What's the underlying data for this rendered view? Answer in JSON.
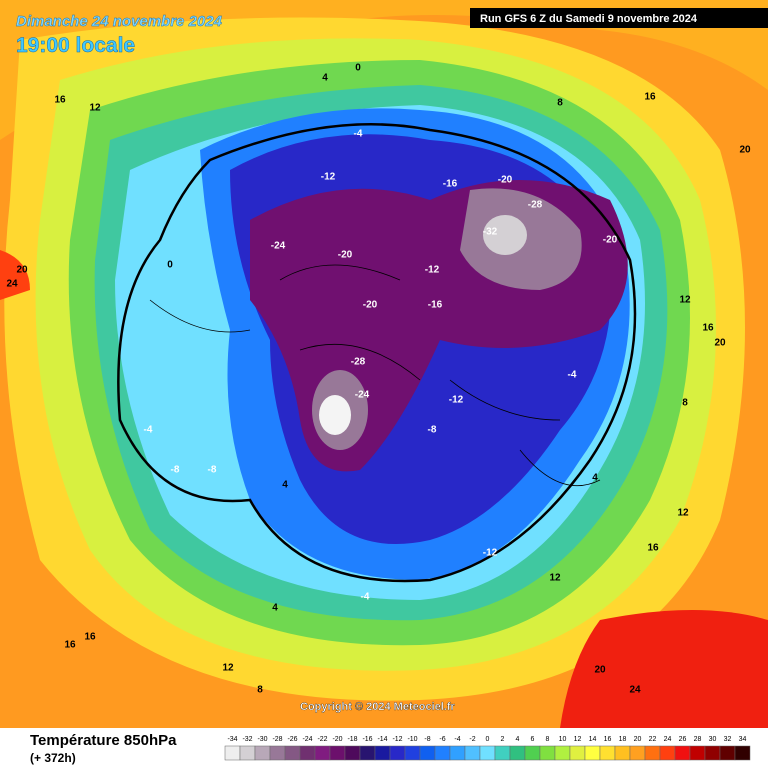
{
  "header": {
    "date": "Dimanche 24 novembre 2024",
    "time": "19:00 locale",
    "run": "Run GFS 6 Z du Samedi 9 novembre 2024"
  },
  "copyright": "Copyright © 2024 Meteociel.fr",
  "footer": {
    "title": "Température 850hPa",
    "lead": "(+ 372h)"
  },
  "scale": {
    "ticks": [
      -34,
      -32,
      -30,
      -28,
      -26,
      -24,
      -22,
      -20,
      -18,
      -16,
      -14,
      -12,
      -10,
      -8,
      -6,
      -4,
      -2,
      0,
      2,
      4,
      6,
      8,
      10,
      12,
      14,
      16,
      18,
      20,
      22,
      24,
      26,
      28,
      30,
      32,
      34
    ],
    "colors": [
      "#eeeeee",
      "#d4d0d4",
      "#b8a8b8",
      "#987898",
      "#845884",
      "#703070",
      "#801c80",
      "#6c106c",
      "#4e0a5c",
      "#281470",
      "#1a1aa0",
      "#2828c8",
      "#2040e0",
      "#1060f0",
      "#2080ff",
      "#30a0ff",
      "#50c0ff",
      "#70e0ff",
      "#40d0c0",
      "#30c080",
      "#50d050",
      "#80e040",
      "#b0f040",
      "#e0f040",
      "#ffff40",
      "#ffe030",
      "#ffc020",
      "#ffa020",
      "#ff7010",
      "#ff4010",
      "#f01010",
      "#c00000",
      "#900000",
      "#600000",
      "#300000"
    ]
  },
  "map_labels": [
    "16",
    "12",
    "4",
    "0",
    "-4",
    "-12",
    "-20",
    "-16",
    "-28",
    "-32",
    "-20",
    "-24",
    "-20",
    "-12",
    "-8",
    "-4",
    "0",
    "4",
    "8",
    "12",
    "16",
    "20",
    "24",
    "-16",
    "-20",
    "-28",
    "-24",
    "-12",
    "-8",
    "-4",
    "4",
    "8",
    "12",
    "16",
    "20",
    "24",
    "-8",
    "-12",
    "-4",
    "4",
    "12",
    "16",
    "20",
    "16",
    "12",
    "8",
    "20",
    "16"
  ]
}
